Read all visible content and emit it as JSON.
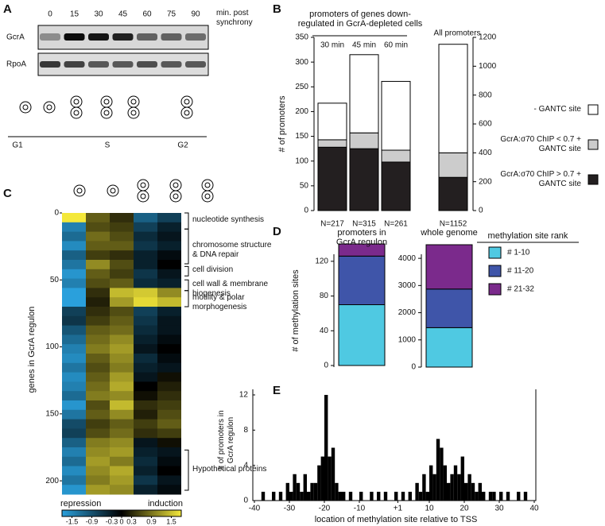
{
  "panel_labels": [
    "A",
    "B",
    "C",
    "D",
    "E"
  ],
  "blot": {
    "times": [
      0,
      15,
      30,
      45,
      60,
      75,
      90
    ],
    "time_unit": "min. post synchrony",
    "rows": [
      "GcrA",
      "RpoA"
    ],
    "phases": [
      "G1",
      "S",
      "G2"
    ]
  },
  "chart_data": [
    {
      "type": "bar",
      "stacked": true,
      "title": "promoters of genes down-regulated in GcrA-depleted cells",
      "ylabel": "# of promoters",
      "categories": [
        "30 min",
        "45 min",
        "60 min",
        "All promoters"
      ],
      "category_axis": [
        "y",
        "y",
        "y",
        "y2"
      ],
      "n_labels": [
        "N=217",
        "N=315",
        "N=261",
        "N=1152"
      ],
      "series": [
        {
          "name": "GcrA:σ70 ChIP > 0.7 + GANTC site",
          "color": "#231f20",
          "values": [
            128,
            125,
            98,
            230
          ]
        },
        {
          "name": "GcrA:σ70 ChIP < 0.7 + GANTC site",
          "color": "#cccccc",
          "values": [
            15,
            32,
            24,
            170
          ]
        },
        {
          "name": "- GANTC site",
          "color": "#ffffff",
          "values": [
            74,
            158,
            139,
            752
          ]
        }
      ],
      "ylim": [
        0,
        350
      ],
      "yticks": [
        0,
        50,
        100,
        150,
        200,
        250,
        300,
        350
      ],
      "y2lim": [
        0,
        1200
      ],
      "y2ticks": [
        0,
        200,
        400,
        600,
        800,
        1000,
        1200
      ]
    },
    {
      "type": "heatmap",
      "ylabel": "genes in GcrA regulon",
      "ylim": [
        0,
        210
      ],
      "yticks": [
        0,
        50,
        100,
        150,
        200
      ],
      "values": [
        [
          1.5,
          0.6,
          0.3,
          -0.9,
          -0.6
        ],
        [
          -1.2,
          0.5,
          0.4,
          -0.6,
          -0.3
        ],
        [
          -1.0,
          0.7,
          0.5,
          -0.4,
          -0.2
        ],
        [
          -1.3,
          0.6,
          0.6,
          -0.5,
          -0.3
        ],
        [
          -0.9,
          0.4,
          0.3,
          -0.3,
          -0.1
        ],
        [
          -1.1,
          0.9,
          0.5,
          -0.3,
          0.0
        ],
        [
          -1.4,
          0.6,
          0.4,
          -0.5,
          -0.2
        ],
        [
          -1.2,
          0.5,
          0.6,
          -0.4,
          -0.3
        ],
        [
          -1.5,
          0.3,
          1.2,
          1.3,
          0.9
        ],
        [
          -1.5,
          0.2,
          1.0,
          1.4,
          1.2
        ],
        [
          -0.6,
          0.3,
          0.5,
          -0.6,
          -0.3
        ],
        [
          -0.5,
          0.4,
          0.6,
          -0.5,
          -0.2
        ],
        [
          -0.8,
          0.6,
          0.7,
          -0.4,
          -0.2
        ],
        [
          -1.0,
          0.7,
          0.9,
          -0.3,
          -0.1
        ],
        [
          -1.2,
          0.8,
          1.0,
          -0.2,
          0.0
        ],
        [
          -1.3,
          0.6,
          0.9,
          -0.4,
          -0.1
        ],
        [
          -1.1,
          0.5,
          0.8,
          -0.3,
          -0.2
        ],
        [
          -1.3,
          0.6,
          1.0,
          -0.2,
          0.1
        ],
        [
          -1.2,
          0.7,
          1.1,
          0.0,
          0.2
        ],
        [
          -1.0,
          0.8,
          0.9,
          0.1,
          0.3
        ],
        [
          -1.4,
          0.5,
          1.2,
          0.3,
          0.4
        ],
        [
          -1.1,
          0.6,
          0.9,
          0.2,
          0.5
        ],
        [
          -0.7,
          0.4,
          0.6,
          0.4,
          0.6
        ],
        [
          -0.6,
          0.5,
          0.7,
          0.3,
          0.4
        ],
        [
          -0.9,
          0.8,
          0.9,
          -0.2,
          0.1
        ],
        [
          -1.2,
          0.9,
          1.0,
          -0.3,
          -0.2
        ],
        [
          -1.0,
          1.0,
          0.8,
          -0.4,
          -0.1
        ],
        [
          -1.3,
          0.9,
          1.1,
          -0.3,
          0.0
        ],
        [
          -1.1,
          0.8,
          1.0,
          -0.5,
          -0.2
        ],
        [
          -1.4,
          1.0,
          0.9,
          -0.3,
          -0.1
        ]
      ],
      "groups": [
        {
          "label": "nucleotide synthesis",
          "start": 0,
          "end": 12
        },
        {
          "label": "chromosome structure & DNA repair",
          "start": 12,
          "end": 38
        },
        {
          "label": "cell division",
          "start": 40,
          "end": 47
        },
        {
          "label": "cell wall & membrane biogenesis",
          "start": 50,
          "end": 58
        },
        {
          "label": "motility & polar morphogenesis",
          "start": 58,
          "end": 70
        },
        {
          "label": "Hypothetical proteins",
          "start": 177,
          "end": 207
        }
      ],
      "colorbar": {
        "xlim": [
          -1.8,
          1.8
        ],
        "ticks": [
          -1.5,
          -0.9,
          -0.3,
          0,
          0.3,
          0.9,
          1.5
        ],
        "low_label": "repression",
        "high_label": "induction",
        "colors": [
          "#2aa0dc",
          "#000000",
          "#f4e83a"
        ]
      }
    },
    {
      "type": "bar",
      "stacked": true,
      "title": "promoters in GcrA regulon",
      "ylabel": "# of methylation sites",
      "legend_title": "methylation site rank",
      "ylim": [
        0,
        140
      ],
      "yticks": [
        0,
        40,
        80,
        120
      ],
      "series": [
        {
          "name": "# 1-10",
          "color": "#4fc9e2",
          "values": [
            70
          ]
        },
        {
          "name": "# 11-20",
          "color": "#3f55a9",
          "values": [
            56
          ]
        },
        {
          "name": "# 21-32",
          "color": "#7b2a8c",
          "values": [
            14
          ]
        }
      ]
    },
    {
      "type": "bar",
      "stacked": true,
      "title": "whole genome",
      "ylim": [
        0,
        4500
      ],
      "yticks": [
        0,
        1000,
        2000,
        3000,
        4000
      ],
      "series": [
        {
          "color": "#4fc9e2",
          "values": [
            1450
          ]
        },
        {
          "color": "#3f55a9",
          "values": [
            1420
          ]
        },
        {
          "color": "#7b2a8c",
          "values": [
            1630
          ]
        }
      ]
    },
    {
      "type": "histogram",
      "xlabel": "location of methylation site relative to TSS",
      "ylabel": "# of promoters in GcrA regulon",
      "color": "#000000",
      "bins": [
        -40,
        -39,
        -38,
        -37,
        -36,
        -35,
        -34,
        -33,
        -32,
        -31,
        -30,
        -29,
        -28,
        -27,
        -26,
        -25,
        -24,
        -23,
        -22,
        -21,
        -20,
        -19,
        -18,
        -17,
        -16,
        -15,
        -14,
        -13,
        -12,
        -11,
        -10,
        -9,
        -8,
        -7,
        -6,
        -5,
        -4,
        -3,
        -2,
        -1,
        0,
        1,
        2,
        3,
        4,
        5,
        6,
        7,
        8,
        9,
        10,
        11,
        12,
        13,
        14,
        15,
        16,
        17,
        18,
        19,
        20,
        21,
        22,
        23,
        24,
        25,
        26,
        27,
        28,
        29,
        30,
        31,
        32,
        33,
        34,
        35,
        36,
        37,
        38,
        39,
        40
      ],
      "values": [
        0,
        0,
        1,
        0,
        0,
        1,
        0,
        1,
        0,
        2,
        1,
        3,
        2,
        1,
        3,
        1,
        2,
        2,
        4,
        5,
        12,
        5,
        6,
        2,
        1,
        1,
        0,
        1,
        0,
        0,
        1,
        0,
        0,
        1,
        0,
        1,
        0,
        1,
        0,
        0,
        1,
        0,
        1,
        0,
        1,
        0,
        2,
        1,
        3,
        1,
        4,
        3,
        7,
        6,
        4,
        2,
        3,
        4,
        3,
        5,
        2,
        3,
        2,
        1,
        2,
        1,
        0,
        1,
        1,
        0,
        1,
        0,
        1,
        0,
        0,
        1,
        0,
        1,
        0,
        0
      ],
      "xlim": [
        -40,
        40
      ],
      "ylim": [
        0,
        12
      ],
      "xticks": [
        -40,
        -30,
        -20,
        -10,
        {
          "value": 1,
          "label": "+1"
        },
        10,
        20,
        30,
        40
      ],
      "yticks": [
        0,
        4,
        8,
        12
      ]
    }
  ]
}
